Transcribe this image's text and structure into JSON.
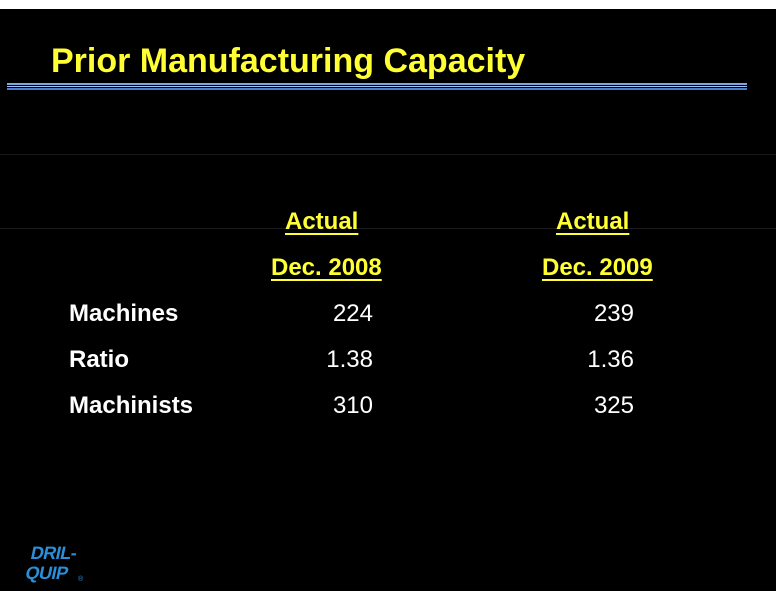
{
  "slide": {
    "title": "Prior Manufacturing Capacity",
    "columns": [
      {
        "line1": "Actual",
        "line2": "Dec. 2008"
      },
      {
        "line1": "Actual",
        "line2": "Dec. 2009"
      }
    ],
    "rows": [
      {
        "label": "Machines",
        "values": [
          "224",
          "239"
        ]
      },
      {
        "label": "Ratio",
        "values": [
          "1.38",
          "1.36"
        ]
      },
      {
        "label": "Machinists",
        "values": [
          "310",
          "325"
        ]
      }
    ],
    "logo": {
      "line1": "DRIL-",
      "line2": "QUIP",
      "mark": "®"
    }
  },
  "colors": {
    "background": "#000000",
    "title": "#ffff33",
    "body_text": "#ffffff",
    "logo": "#2a8fd8"
  }
}
